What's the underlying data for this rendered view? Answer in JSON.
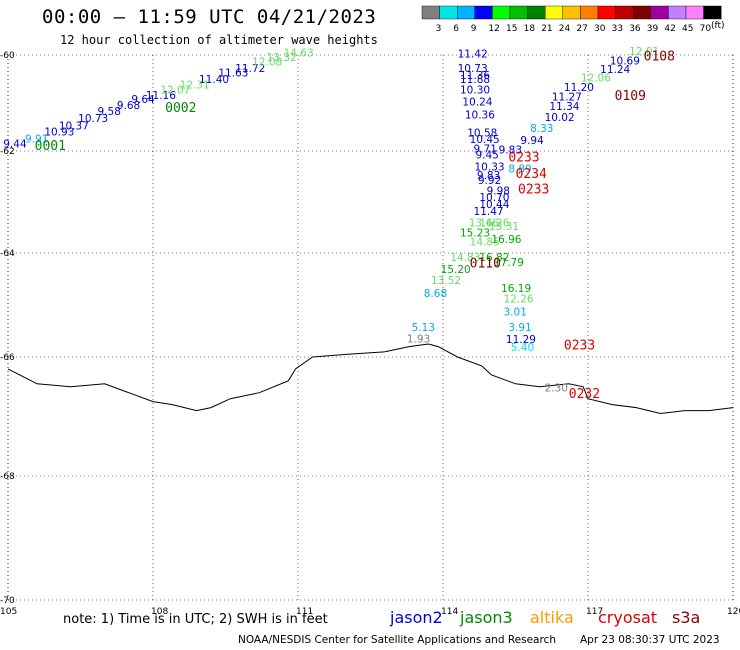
{
  "title": "00:00 – 11:59 UTC 04/21/2023",
  "subtitle": "12 hour collection of altimeter wave heights",
  "note": "note:  1) Time is in UTC;  2) SWH is in feet",
  "credit": "NOAA/NESDIS Center for Satellite Applications and Research",
  "timestamp": "Apr 23 08:30:37 UTC 2023",
  "colorbar": {
    "unit": "(ft)",
    "levels": [
      3,
      6,
      9,
      12,
      15,
      18,
      21,
      24,
      27,
      30,
      33,
      36,
      39,
      42,
      45,
      70
    ],
    "colors": [
      "#808080",
      "#00e5e5",
      "#00b3ff",
      "#0000ff",
      "#00ff00",
      "#00c000",
      "#008000",
      "#ffff00",
      "#ffc000",
      "#ff8000",
      "#ff0000",
      "#c00000",
      "#800000",
      "#a000a0",
      "#c080ff",
      "#ff80ff",
      "#000000"
    ]
  },
  "legend": [
    {
      "name": "jason2",
      "color": "#0000dd"
    },
    {
      "name": "jason3",
      "color": "#008800"
    },
    {
      "name": "altika",
      "color": "#ff9900"
    },
    {
      "name": "cryosat",
      "color": "#dd0000"
    },
    {
      "name": "s3a",
      "color": "#880000"
    }
  ],
  "chart_data": {
    "type": "scatter",
    "xlim": [
      105,
      120
    ],
    "ylim": [
      -70,
      -60
    ],
    "xticks": [
      105,
      108,
      111,
      114,
      117,
      120
    ],
    "yticks": [
      -60,
      -62,
      -64,
      -66,
      -68,
      -70
    ],
    "xtick_labels": [
      "105",
      "108",
      "111",
      "114",
      "117",
      "120"
    ],
    "ytick_labels": [
      "-60",
      "-62",
      "-64",
      "-66",
      "-68",
      "-70"
    ],
    "grid": true,
    "coastline": [
      [
        105.0,
        -66.2
      ],
      [
        105.6,
        -66.45
      ],
      [
        106.3,
        -66.5
      ],
      [
        107.0,
        -66.45
      ],
      [
        107.5,
        -66.6
      ],
      [
        108.0,
        -66.75
      ],
      [
        108.4,
        -66.8
      ],
      [
        108.9,
        -66.9
      ],
      [
        109.2,
        -66.85
      ],
      [
        109.6,
        -66.7
      ],
      [
        110.2,
        -66.6
      ],
      [
        110.8,
        -66.4
      ],
      [
        110.95,
        -66.2
      ],
      [
        111.3,
        -66.0
      ],
      [
        112.0,
        -65.95
      ],
      [
        112.8,
        -65.9
      ],
      [
        113.3,
        -65.8
      ],
      [
        113.7,
        -65.75
      ],
      [
        113.9,
        -65.8
      ],
      [
        114.3,
        -66.0
      ],
      [
        114.8,
        -66.15
      ],
      [
        115.0,
        -66.3
      ],
      [
        115.5,
        -66.45
      ],
      [
        116.0,
        -66.5
      ],
      [
        116.6,
        -66.45
      ],
      [
        116.9,
        -66.5
      ],
      [
        117.0,
        -66.7
      ],
      [
        117.5,
        -66.8
      ],
      [
        118.0,
        -66.85
      ],
      [
        118.5,
        -66.95
      ],
      [
        119.0,
        -66.9
      ],
      [
        119.5,
        -66.9
      ],
      [
        120.0,
        -66.85
      ]
    ],
    "coastline_color": "#000000",
    "points": [
      {
        "lon": 105.15,
        "lat": -61.93,
        "v": "9.44",
        "color": "#0000cc"
      },
      {
        "lon": 105.6,
        "lat": -61.82,
        "v": "9.91",
        "color": "#00aaee"
      },
      {
        "lon": 106.0,
        "lat": -61.68,
        "v": "10.93",
        "color": "#0000cc"
      },
      {
        "lon": 106.3,
        "lat": -61.55,
        "v": "10.37",
        "color": "#0000cc"
      },
      {
        "lon": 106.7,
        "lat": -61.4,
        "v": "10.73",
        "color": "#0000cc"
      },
      {
        "lon": 107.1,
        "lat": -61.25,
        "v": "9.58",
        "color": "#0000cc"
      },
      {
        "lon": 107.5,
        "lat": -61.12,
        "v": "9.68",
        "color": "#0000cc"
      },
      {
        "lon": 107.8,
        "lat": -61.0,
        "v": "9.64",
        "color": "#0000cc"
      },
      {
        "lon": 108.1,
        "lat": -60.92,
        "v": "11.16",
        "color": "#0000cc"
      },
      {
        "lon": 108.4,
        "lat": -60.8,
        "v": "12.07",
        "color": "#66dd66"
      },
      {
        "lon": 108.8,
        "lat": -60.7,
        "v": "12.31",
        "color": "#66dd66"
      },
      {
        "lon": 109.2,
        "lat": -60.58,
        "v": "11.40",
        "color": "#0000cc"
      },
      {
        "lon": 109.6,
        "lat": -60.45,
        "v": "11.63",
        "color": "#0000cc"
      },
      {
        "lon": 109.95,
        "lat": -60.35,
        "v": "11.72",
        "color": "#0000cc"
      },
      {
        "lon": 110.3,
        "lat": -60.22,
        "v": "12.08",
        "color": "#66dd66"
      },
      {
        "lon": 110.6,
        "lat": -60.12,
        "v": "13.32",
        "color": "#66dd66"
      },
      {
        "lon": 110.95,
        "lat": -60.03,
        "v": "14.63",
        "color": "#66dd66"
      },
      {
        "lon": 114.55,
        "lat": -60.05,
        "v": "11.42",
        "color": "#0000cc"
      },
      {
        "lon": 114.55,
        "lat": -60.35,
        "v": "10.73",
        "color": "#0000cc"
      },
      {
        "lon": 114.6,
        "lat": -60.5,
        "v": "11.36",
        "color": "#0000cc"
      },
      {
        "lon": 114.6,
        "lat": -60.58,
        "v": "11.88",
        "color": "#0000cc"
      },
      {
        "lon": 114.6,
        "lat": -60.8,
        "v": "10.30",
        "color": "#0000cc"
      },
      {
        "lon": 114.65,
        "lat": -61.05,
        "v": "10.24",
        "color": "#0000cc"
      },
      {
        "lon": 114.7,
        "lat": -61.32,
        "v": "10.36",
        "color": "#0000cc"
      },
      {
        "lon": 114.75,
        "lat": -61.7,
        "v": "10.58",
        "color": "#0000cc"
      },
      {
        "lon": 114.8,
        "lat": -61.83,
        "v": "10.45",
        "color": "#0000cc"
      },
      {
        "lon": 114.88,
        "lat": -62.03,
        "v": "9.71",
        "color": "#0000cc"
      },
      {
        "lon": 114.92,
        "lat": -62.15,
        "v": "9.45",
        "color": "#0000cc"
      },
      {
        "lon": 114.9,
        "lat": -62.38,
        "v": "10.33",
        "color": "#0000cc"
      },
      {
        "lon": 114.95,
        "lat": -62.55,
        "v": "9.83",
        "color": "#0000cc"
      },
      {
        "lon": 114.97,
        "lat": -62.65,
        "v": "9.92",
        "color": "#0000cc"
      },
      {
        "lon": 115.15,
        "lat": -62.85,
        "v": "9.98",
        "color": "#0000cc"
      },
      {
        "lon": 115.0,
        "lat": -62.98,
        "v": "10.70",
        "color": "#0000cc"
      },
      {
        "lon": 115.0,
        "lat": -63.12,
        "v": "10.44",
        "color": "#0000cc"
      },
      {
        "lon": 114.88,
        "lat": -63.25,
        "v": "11.47",
        "color": "#0000cc"
      },
      {
        "lon": 115.4,
        "lat": -62.05,
        "v": "9.83",
        "color": "#0000cc"
      },
      {
        "lon": 115.6,
        "lat": -62.42,
        "v": "8.89",
        "color": "#00aaee"
      },
      {
        "lon": 115.85,
        "lat": -61.85,
        "v": "9.94",
        "color": "#0000cc"
      },
      {
        "lon": 116.05,
        "lat": -61.6,
        "v": "8.33",
        "color": "#00aaee"
      },
      {
        "lon": 116.35,
        "lat": -61.38,
        "v": "10.02",
        "color": "#0000cc"
      },
      {
        "lon": 116.45,
        "lat": -61.15,
        "v": "11.34",
        "color": "#0000cc"
      },
      {
        "lon": 116.5,
        "lat": -60.95,
        "v": "11.27",
        "color": "#0000cc"
      },
      {
        "lon": 116.75,
        "lat": -60.75,
        "v": "11.20",
        "color": "#0000cc"
      },
      {
        "lon": 117.1,
        "lat": -60.55,
        "v": "12.06",
        "color": "#66dd66"
      },
      {
        "lon": 117.5,
        "lat": -60.38,
        "v": "11.24",
        "color": "#0000cc"
      },
      {
        "lon": 117.7,
        "lat": -60.2,
        "v": "10.69",
        "color": "#0000cc"
      },
      {
        "lon": 118.1,
        "lat": -60.0,
        "v": "12.01",
        "color": "#66dd66"
      },
      {
        "lon": 114.78,
        "lat": -63.48,
        "v": "13.46",
        "color": "#66dd66"
      },
      {
        "lon": 115.0,
        "lat": -63.48,
        "v": "16.26",
        "color": "#66dd66"
      },
      {
        "lon": 115.2,
        "lat": -63.55,
        "v": "13.31",
        "color": "#66dd66"
      },
      {
        "lon": 114.6,
        "lat": -63.68,
        "v": "15.23",
        "color": "#00aa00"
      },
      {
        "lon": 114.8,
        "lat": -63.85,
        "v": "14.85",
        "color": "#66dd66"
      },
      {
        "lon": 115.25,
        "lat": -63.8,
        "v": "16.96",
        "color": "#00aa00"
      },
      {
        "lon": 114.4,
        "lat": -64.15,
        "v": "14.83",
        "color": "#66dd66"
      },
      {
        "lon": 115.0,
        "lat": -64.15,
        "v": "16.82",
        "color": "#00aa00"
      },
      {
        "lon": 115.3,
        "lat": -64.25,
        "v": "17.79",
        "color": "#00aa00"
      },
      {
        "lon": 114.2,
        "lat": -64.38,
        "v": "15.20",
        "color": "#00aa00"
      },
      {
        "lon": 114.0,
        "lat": -64.6,
        "v": "13.52",
        "color": "#66dd66"
      },
      {
        "lon": 113.85,
        "lat": -64.85,
        "v": "8.68",
        "color": "#00aaee"
      },
      {
        "lon": 115.45,
        "lat": -64.75,
        "v": "16.19",
        "color": "#00aa00"
      },
      {
        "lon": 115.5,
        "lat": -64.95,
        "v": "12.26",
        "color": "#66dd66"
      },
      {
        "lon": 115.5,
        "lat": -65.2,
        "v": "3.01",
        "color": "#00aaee"
      },
      {
        "lon": 115.6,
        "lat": -65.5,
        "v": "3.91",
        "color": "#00aaee"
      },
      {
        "lon": 115.55,
        "lat": -65.73,
        "v": "11.29",
        "color": "#0000cc"
      },
      {
        "lon": 115.65,
        "lat": -65.88,
        "v": "5.40",
        "color": "#00e5e5"
      },
      {
        "lon": 113.6,
        "lat": -65.5,
        "v": "5.13",
        "color": "#00aaee"
      },
      {
        "lon": 113.5,
        "lat": -65.72,
        "v": "1.93",
        "color": "#808080"
      },
      {
        "lon": 116.35,
        "lat": -66.58,
        "v": "2.30",
        "color": "#808080"
      }
    ],
    "time_labels": [
      {
        "lon": 105.8,
        "lat": -61.9,
        "t": "0001",
        "color": "#008800"
      },
      {
        "lon": 108.5,
        "lat": -61.1,
        "t": "0002",
        "color": "#008800"
      },
      {
        "lon": 118.4,
        "lat": -60.03,
        "t": "0108",
        "color": "#880000"
      },
      {
        "lon": 117.8,
        "lat": -60.85,
        "t": "0109",
        "color": "#880000"
      },
      {
        "lon": 115.6,
        "lat": -62.13,
        "t": "0233",
        "color": "#dd0000"
      },
      {
        "lon": 115.75,
        "lat": -62.45,
        "t": "0234",
        "color": "#dd0000"
      },
      {
        "lon": 115.8,
        "lat": -62.75,
        "t": "0233",
        "color": "#dd0000"
      },
      {
        "lon": 114.8,
        "lat": -64.2,
        "t": "0110",
        "color": "#880000"
      },
      {
        "lon": 116.75,
        "lat": -65.78,
        "t": "0233",
        "color": "#dd0000"
      },
      {
        "lon": 116.85,
        "lat": -66.62,
        "t": "0232",
        "color": "#dd0000"
      }
    ]
  }
}
